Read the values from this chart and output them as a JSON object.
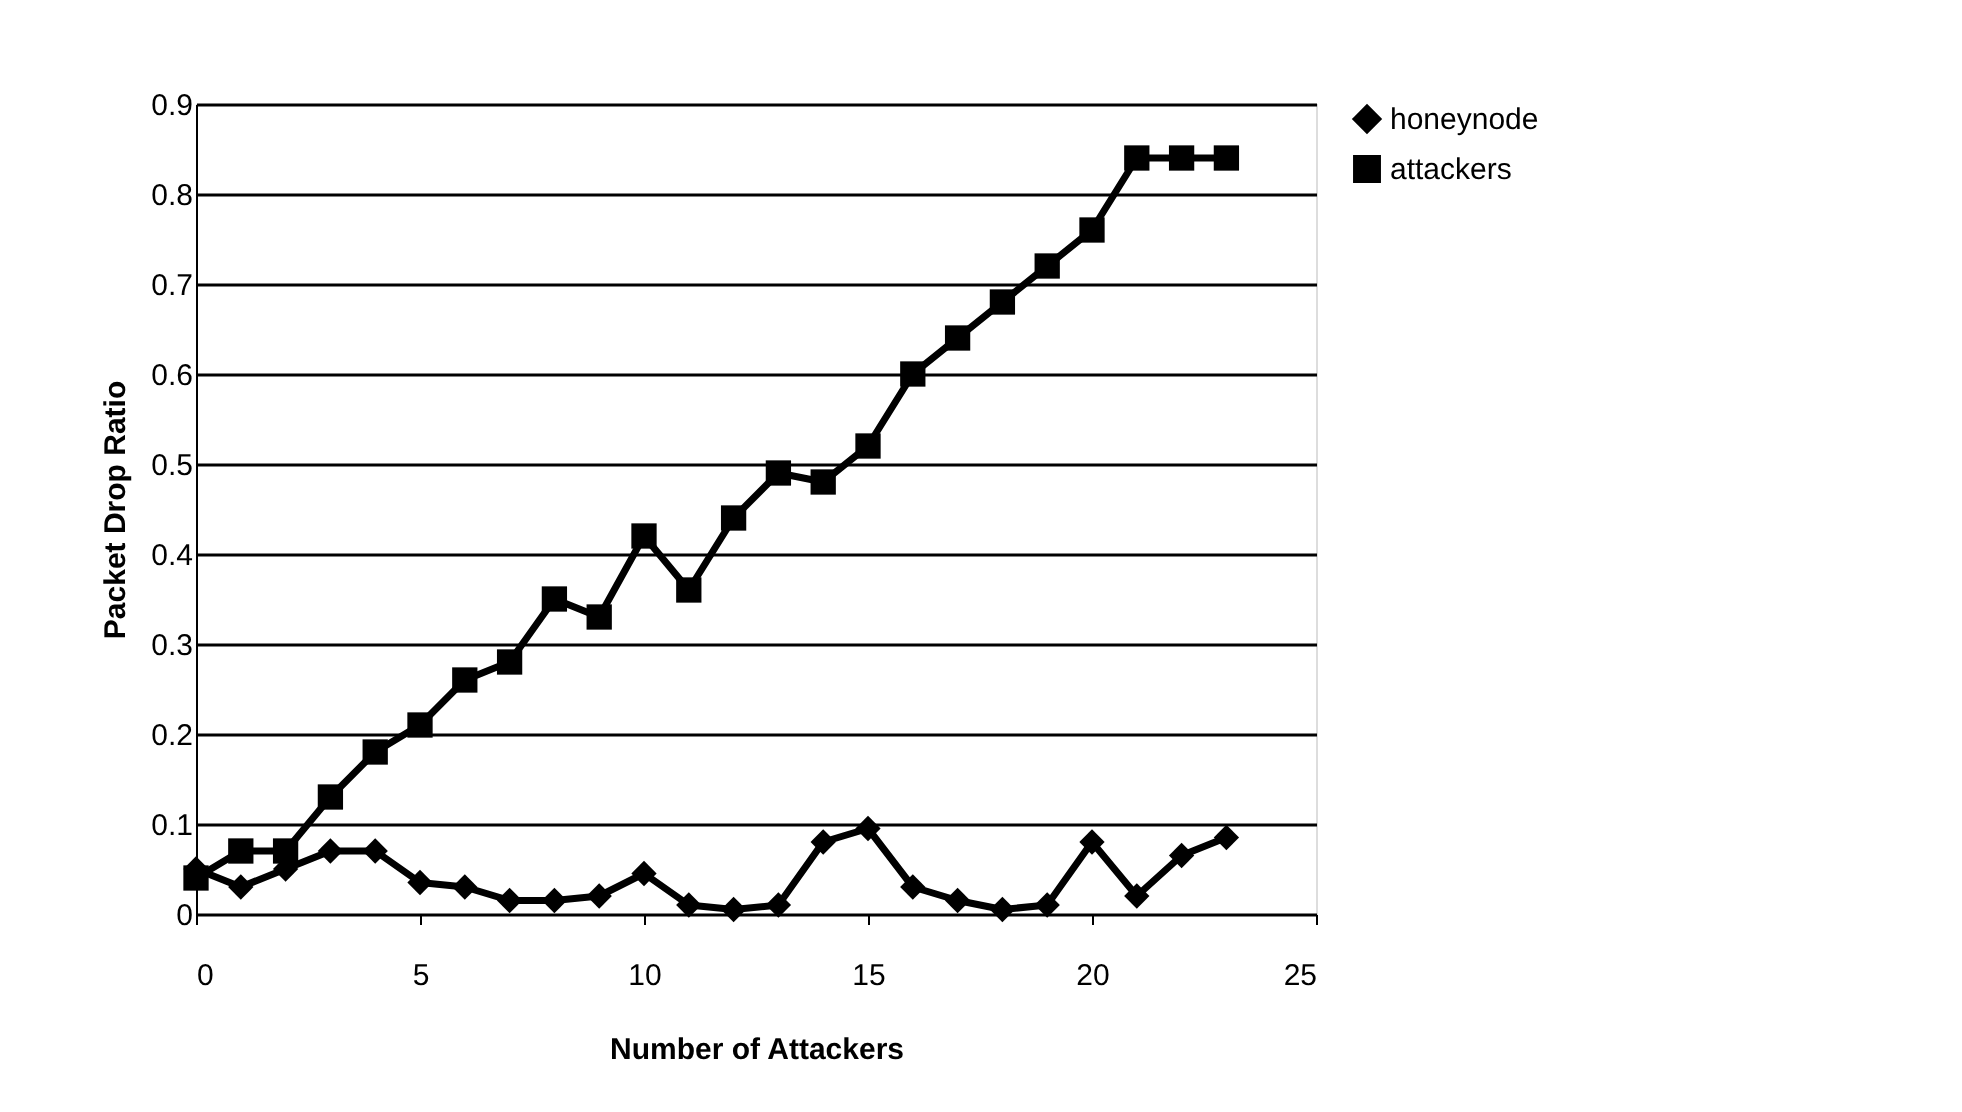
{
  "chart_data": {
    "type": "line",
    "xlabel": "Number of Attackers",
    "ylabel": "Packet Drop Ratio",
    "x": [
      0,
      1,
      2,
      3,
      4,
      5,
      6,
      7,
      8,
      9,
      10,
      11,
      12,
      13,
      14,
      15,
      16,
      17,
      18,
      19,
      20,
      21,
      22,
      23
    ],
    "series": [
      {
        "name": "honeynode",
        "color": "#000000",
        "marker": "diamond",
        "values": [
          0.05,
          0.03,
          0.05,
          0.07,
          0.07,
          0.035,
          0.03,
          0.015,
          0.015,
          0.02,
          0.045,
          0.01,
          0.005,
          0.01,
          0.08,
          0.095,
          0.03,
          0.015,
          0.005,
          0.01,
          0.08,
          0.02,
          0.065,
          0.085
        ]
      },
      {
        "name": "attackers",
        "color": "#000000",
        "marker": "square",
        "values": [
          0.04,
          0.07,
          0.07,
          0.13,
          0.18,
          0.21,
          0.26,
          0.28,
          0.35,
          0.33,
          0.42,
          0.36,
          0.44,
          0.49,
          0.48,
          0.52,
          0.6,
          0.64,
          0.68,
          0.72,
          0.76,
          0.84,
          0.84,
          0.84
        ]
      }
    ],
    "xlim": [
      0,
      25
    ],
    "xticks": [
      0,
      5,
      10,
      15,
      20,
      25
    ],
    "ylim": [
      0,
      0.9
    ],
    "yticks": [
      0,
      0.1,
      0.2,
      0.3,
      0.4,
      0.5,
      0.6,
      0.7,
      0.8,
      0.9
    ],
    "grid": "y",
    "legend": "right",
    "line_style": "solid"
  }
}
